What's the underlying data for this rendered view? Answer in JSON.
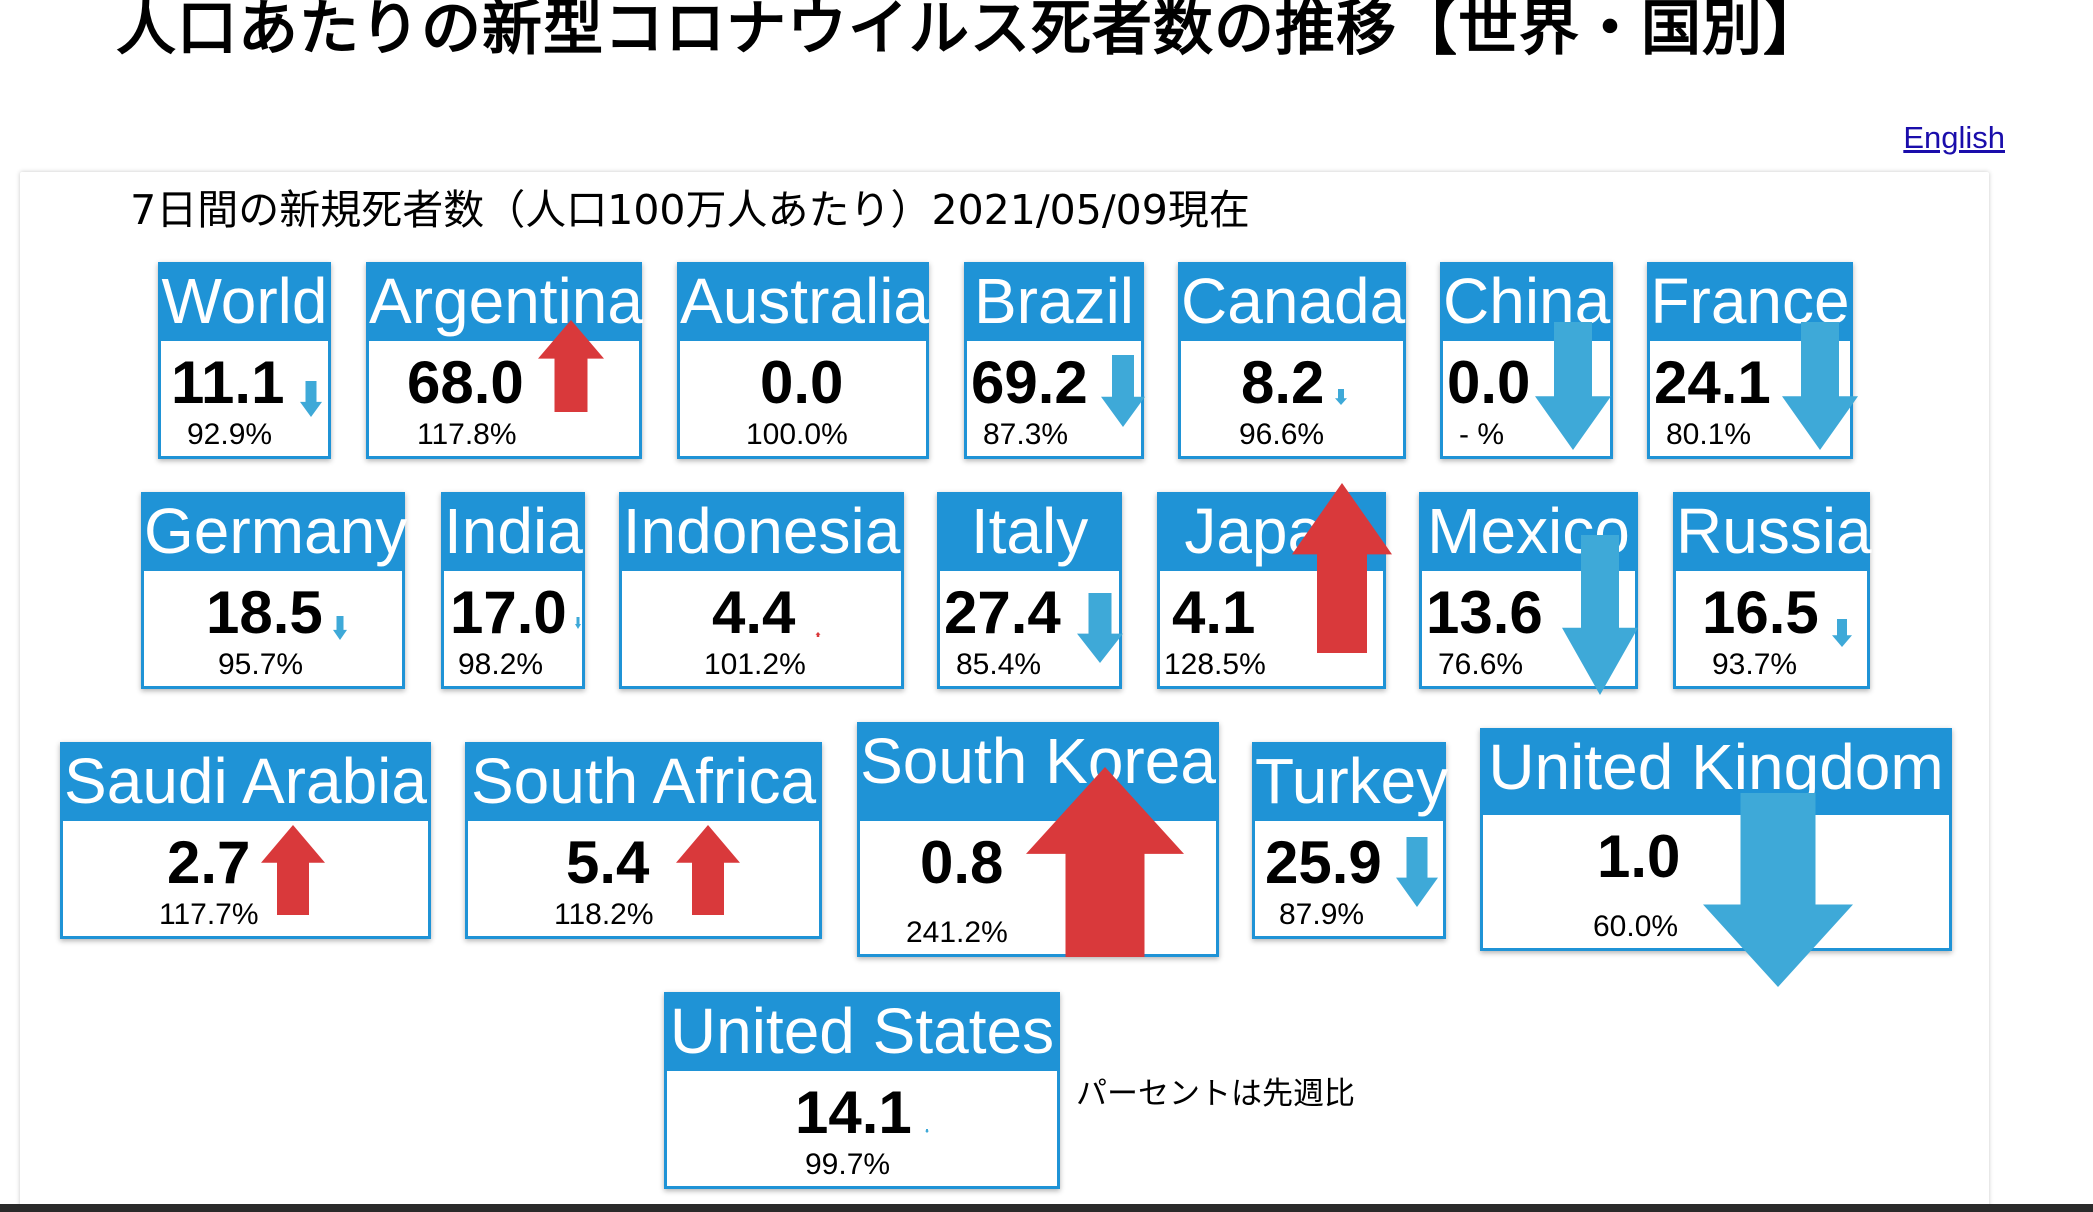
{
  "page": {
    "title": "人口あたりの新型コロナウイルス死者数の推移【世界・国別】",
    "language_link": "English"
  },
  "panel": {
    "title": "7日間の新規死者数（人口100万人あたり）2021/05/09現在",
    "footnote": "パーセントは先週比"
  },
  "colors": {
    "header_blue": "#1f93d6",
    "arrow_up_red": "#d9393b",
    "arrow_down_blue": "#3ea9d8"
  },
  "icons": {
    "increase": "arrow-up-icon",
    "decrease": "arrow-down-icon"
  },
  "countries": [
    {
      "name": "World",
      "value": "11.1",
      "change": "92.9%",
      "trend": "down"
    },
    {
      "name": "Argentina",
      "value": "68.0",
      "change": "117.8%",
      "trend": "up"
    },
    {
      "name": "Australia",
      "value": "0.0",
      "change": "100.0%",
      "trend": "none"
    },
    {
      "name": "Brazil",
      "value": "69.2",
      "change": "87.3%",
      "trend": "down"
    },
    {
      "name": "Canada",
      "value": "8.2",
      "change": "96.6%",
      "trend": "down"
    },
    {
      "name": "China",
      "value": "0.0",
      "change": "- %",
      "trend": "down"
    },
    {
      "name": "France",
      "value": "24.1",
      "change": "80.1%",
      "trend": "down"
    },
    {
      "name": "Germany",
      "value": "18.5",
      "change": "95.7%",
      "trend": "down"
    },
    {
      "name": "India",
      "value": "17.0",
      "change": "98.2%",
      "trend": "down"
    },
    {
      "name": "Indonesia",
      "value": "4.4",
      "change": "101.2%",
      "trend": "up"
    },
    {
      "name": "Italy",
      "value": "27.4",
      "change": "85.4%",
      "trend": "down"
    },
    {
      "name": "Japan",
      "value": "4.1",
      "change": "128.5%",
      "trend": "up"
    },
    {
      "name": "Mexico",
      "value": "13.6",
      "change": "76.6%",
      "trend": "down"
    },
    {
      "name": "Russia",
      "value": "16.5",
      "change": "93.7%",
      "trend": "down"
    },
    {
      "name": "Saudi Arabia",
      "value": "2.7",
      "change": "117.7%",
      "trend": "up"
    },
    {
      "name": "South Africa",
      "value": "5.4",
      "change": "118.2%",
      "trend": "up"
    },
    {
      "name": "South Korea",
      "value": "0.8",
      "change": "241.2%",
      "trend": "up"
    },
    {
      "name": "Turkey",
      "value": "25.9",
      "change": "87.9%",
      "trend": "down"
    },
    {
      "name": "United Kingdom",
      "value": "1.0",
      "change": "60.0%",
      "trend": "down"
    },
    {
      "name": "United States",
      "value": "14.1",
      "change": "99.7%",
      "trend": "down"
    }
  ]
}
